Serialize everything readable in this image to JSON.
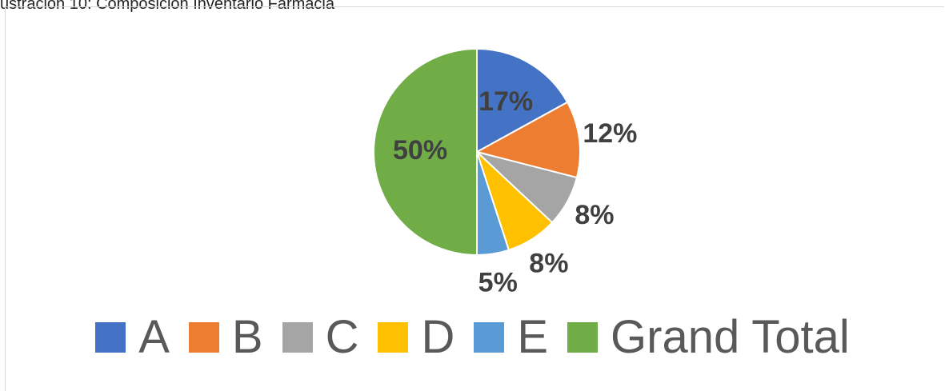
{
  "caption": "ustración 10: Composición Inventario Farmacia",
  "chart_data": {
    "type": "pie",
    "categories": [
      "A",
      "B",
      "C",
      "D",
      "E",
      "Grand Total"
    ],
    "values": [
      17,
      12,
      8,
      8,
      5,
      50
    ],
    "value_labels": [
      "17%",
      "12%",
      "8%",
      "8%",
      "5%",
      "50%"
    ],
    "colors": [
      "#4472c4",
      "#ed7d31",
      "#a5a5a5",
      "#ffc000",
      "#5b9bd5",
      "#70ad47"
    ],
    "legend": "bottom"
  }
}
